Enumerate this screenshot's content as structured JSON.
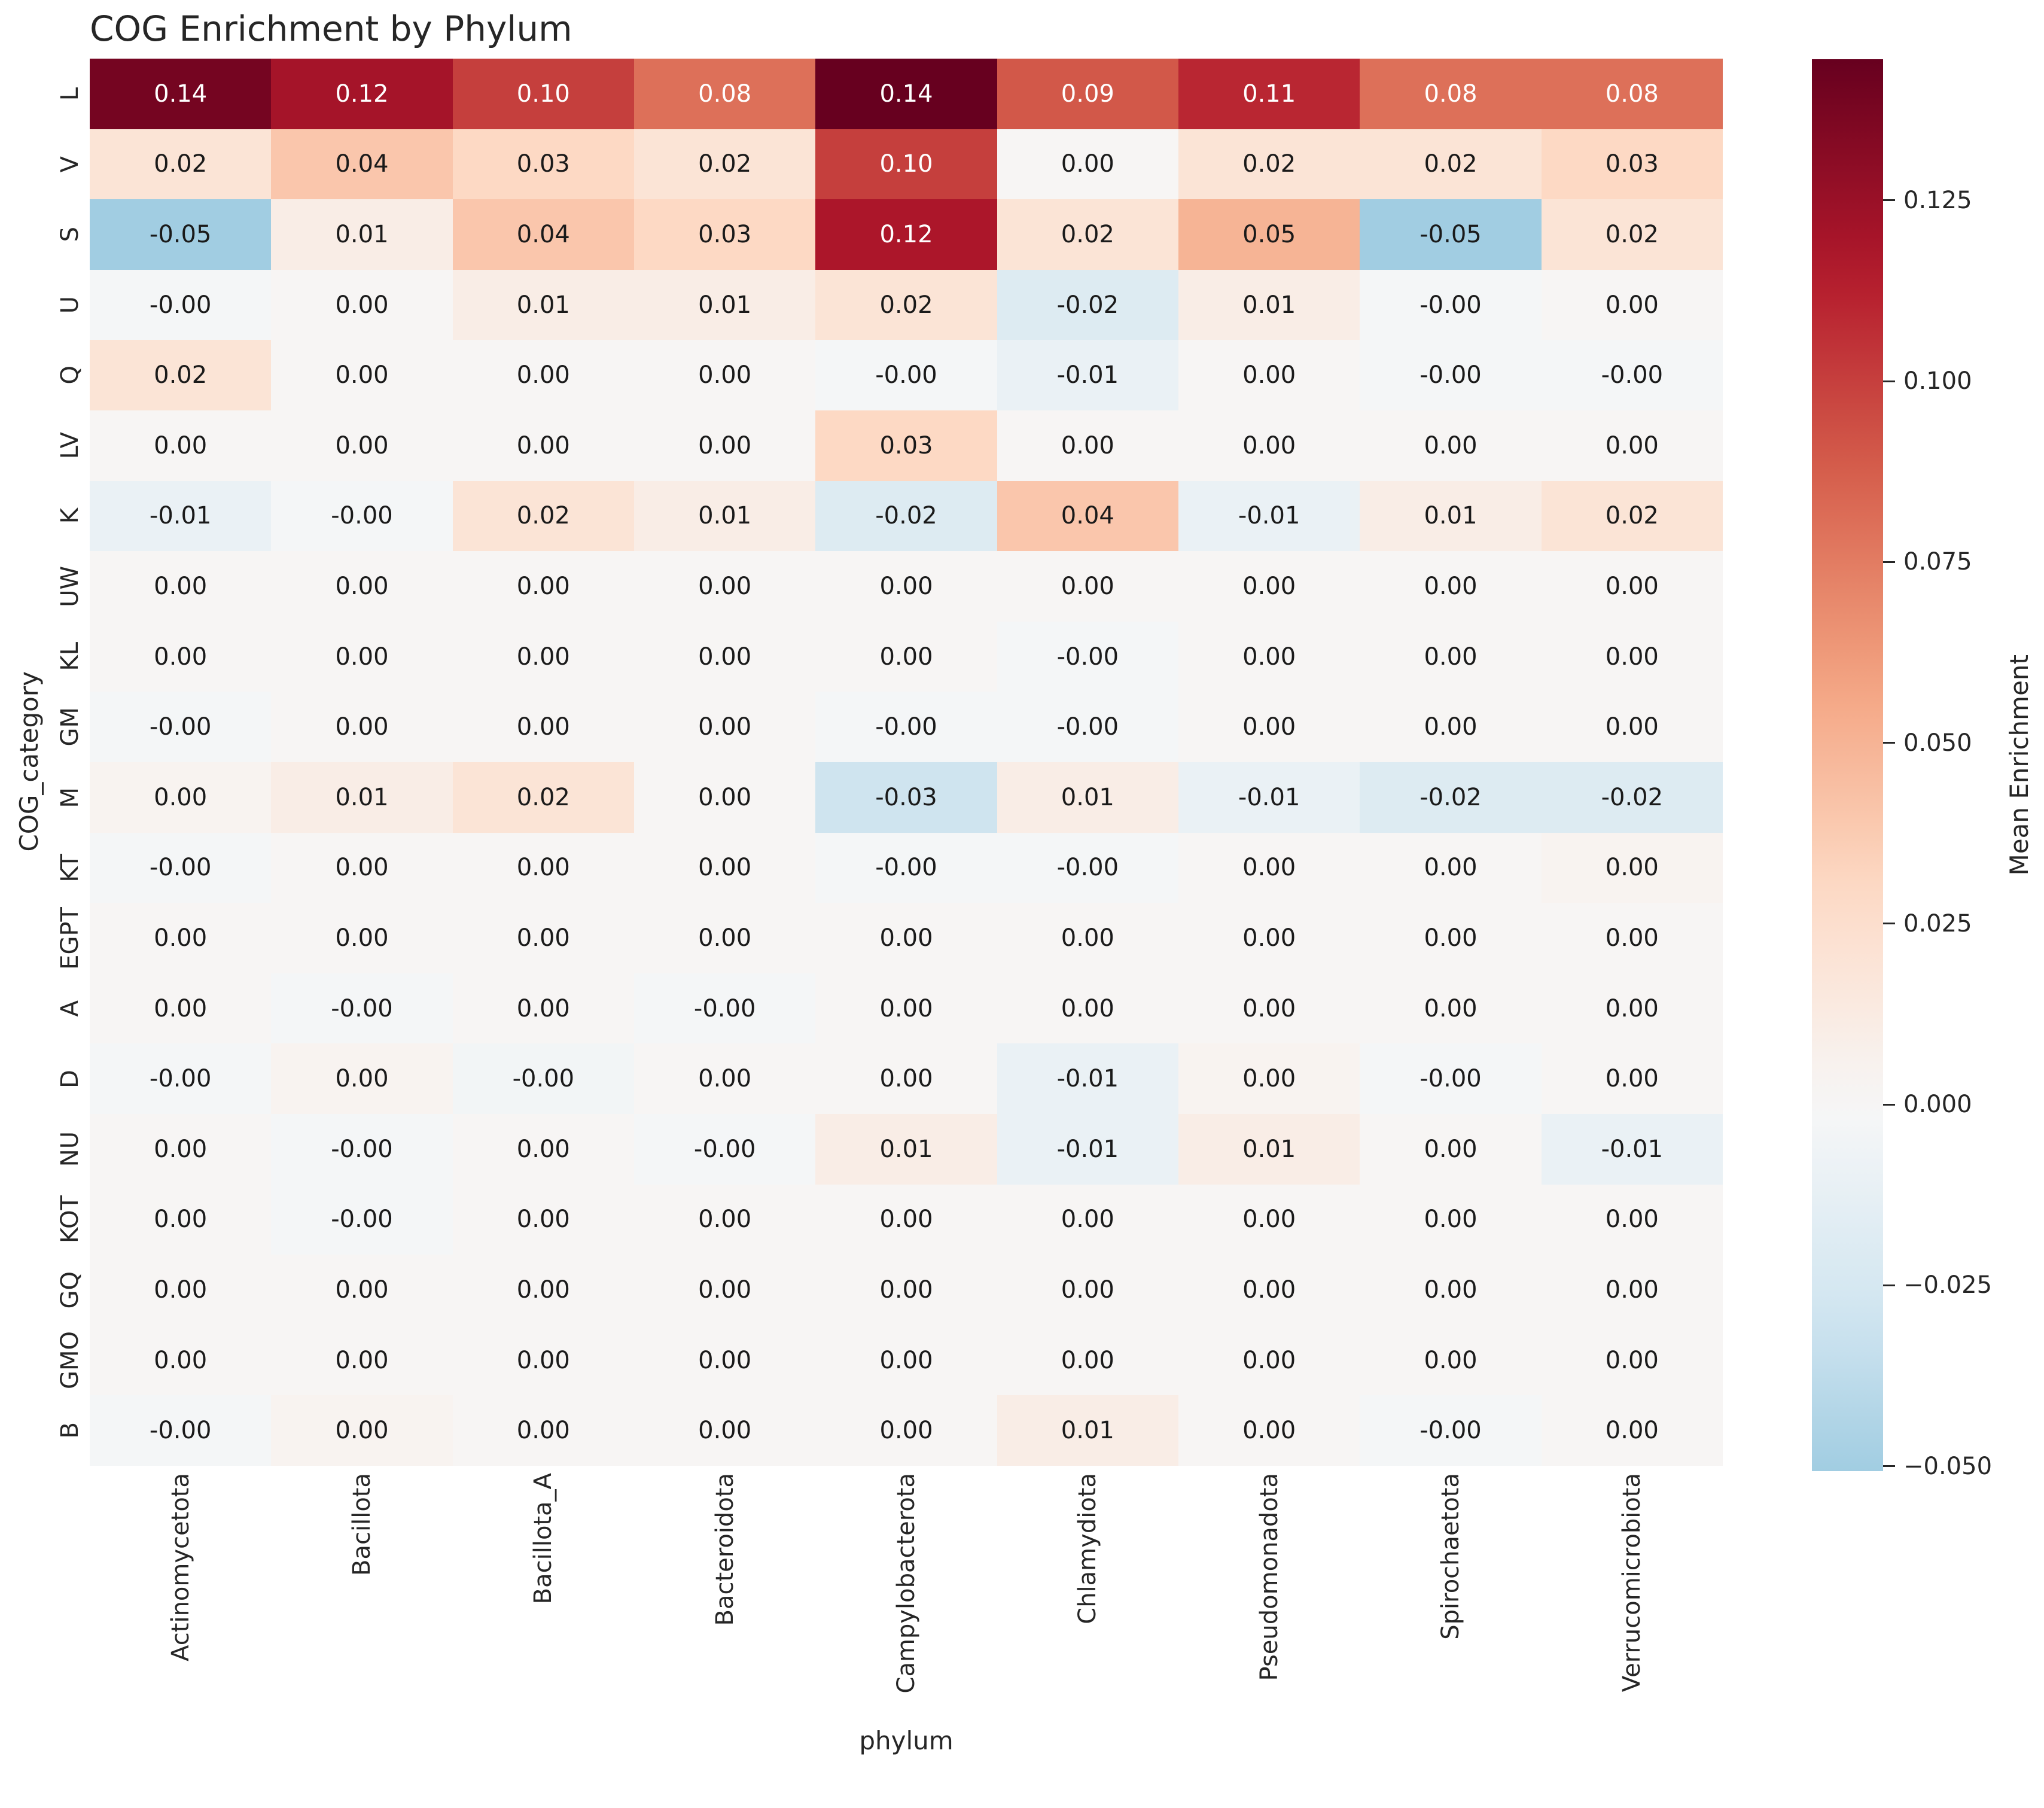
{
  "chart_data": {
    "type": "heatmap",
    "title": "COG Enrichment by Phylum",
    "xlabel": "phylum",
    "ylabel": "COG_category",
    "colorbar_label": "Mean Enrichment",
    "colormap": "RdBu_r",
    "center": 0,
    "vmax": 0.1445,
    "vmin": -0.0507,
    "categories_x": [
      "Actinomycetota",
      "Bacillota",
      "Bacillota_A",
      "Bacteroidota",
      "Campylobacterota",
      "Chlamydiota",
      "Pseudomonadota",
      "Spirochaetota",
      "Verrucomicrobiota"
    ],
    "categories_y": [
      "L",
      "V",
      "S",
      "U",
      "Q",
      "LV",
      "K",
      "UW",
      "KL",
      "GM",
      "M",
      "KT",
      "EGPT",
      "A",
      "D",
      "NU",
      "KOT",
      "GQ",
      "GMO",
      "B"
    ],
    "labels": [
      [
        "0.14",
        "0.12",
        "0.10",
        "0.08",
        "0.14",
        "0.09",
        "0.11",
        "0.08",
        "0.08"
      ],
      [
        "0.02",
        "0.04",
        "0.03",
        "0.02",
        "0.10",
        "0.00",
        "0.02",
        "0.02",
        "0.03"
      ],
      [
        "-0.05",
        "0.01",
        "0.04",
        "0.03",
        "0.12",
        "0.02",
        "0.05",
        "-0.05",
        "0.02"
      ],
      [
        "-0.00",
        "0.00",
        "0.01",
        "0.01",
        "0.02",
        "-0.02",
        "0.01",
        "-0.00",
        "0.00"
      ],
      [
        "0.02",
        "0.00",
        "0.00",
        "0.00",
        "-0.00",
        "-0.01",
        "0.00",
        "-0.00",
        "-0.00"
      ],
      [
        "0.00",
        "0.00",
        "0.00",
        "0.00",
        "0.03",
        "0.00",
        "0.00",
        "0.00",
        "0.00"
      ],
      [
        "-0.01",
        "-0.00",
        "0.02",
        "0.01",
        "-0.02",
        "0.04",
        "-0.01",
        "0.01",
        "0.02"
      ],
      [
        "0.00",
        "0.00",
        "0.00",
        "0.00",
        "0.00",
        "0.00",
        "0.00",
        "0.00",
        "0.00"
      ],
      [
        "0.00",
        "0.00",
        "0.00",
        "0.00",
        "0.00",
        "-0.00",
        "0.00",
        "0.00",
        "0.00"
      ],
      [
        "-0.00",
        "0.00",
        "0.00",
        "0.00",
        "-0.00",
        "-0.00",
        "0.00",
        "0.00",
        "0.00"
      ],
      [
        "0.00",
        "0.01",
        "0.02",
        "0.00",
        "-0.03",
        "0.01",
        "-0.01",
        "-0.02",
        "-0.02"
      ],
      [
        "-0.00",
        "0.00",
        "0.00",
        "0.00",
        "-0.00",
        "-0.00",
        "0.00",
        "0.00",
        "0.00"
      ],
      [
        "0.00",
        "0.00",
        "0.00",
        "0.00",
        "0.00",
        "0.00",
        "0.00",
        "0.00",
        "0.00"
      ],
      [
        "0.00",
        "-0.00",
        "0.00",
        "-0.00",
        "0.00",
        "0.00",
        "0.00",
        "0.00",
        "0.00"
      ],
      [
        "-0.00",
        "0.00",
        "-0.00",
        "0.00",
        "0.00",
        "-0.01",
        "0.00",
        "-0.00",
        "0.00"
      ],
      [
        "0.00",
        "-0.00",
        "0.00",
        "-0.00",
        "0.01",
        "-0.01",
        "0.01",
        "0.00",
        "-0.01"
      ],
      [
        "0.00",
        "-0.00",
        "0.00",
        "0.00",
        "0.00",
        "0.00",
        "0.00",
        "0.00",
        "0.00"
      ],
      [
        "0.00",
        "0.00",
        "0.00",
        "0.00",
        "0.00",
        "0.00",
        "0.00",
        "0.00",
        "0.00"
      ],
      [
        "0.00",
        "0.00",
        "0.00",
        "0.00",
        "0.00",
        "0.00",
        "0.00",
        "0.00",
        "0.00"
      ],
      [
        "-0.00",
        "0.00",
        "0.00",
        "0.00",
        "0.00",
        "0.01",
        "0.00",
        "-0.00",
        "0.00"
      ]
    ],
    "values": [
      [
        0.139,
        0.1205,
        0.1,
        0.08,
        0.1445,
        0.09,
        0.11,
        0.08,
        0.08
      ],
      [
        0.02,
        0.04,
        0.03,
        0.02,
        0.1,
        0.002,
        0.02,
        0.02,
        0.03
      ],
      [
        -0.0507,
        0.01,
        0.04,
        0.03,
        0.118,
        0.02,
        0.05,
        -0.0507,
        0.02
      ],
      [
        -0.002,
        0.002,
        0.01,
        0.01,
        0.02,
        -0.02,
        0.01,
        -0.002,
        0.002
      ],
      [
        0.02,
        0.002,
        0.002,
        0.002,
        -0.002,
        -0.01,
        0.002,
        -0.002,
        -0.002
      ],
      [
        0.002,
        0.002,
        0.002,
        0.002,
        0.03,
        0.002,
        0.002,
        0.002,
        0.002
      ],
      [
        -0.01,
        -0.002,
        0.02,
        0.01,
        -0.02,
        0.04,
        -0.01,
        0.01,
        0.02
      ],
      [
        0.002,
        0.002,
        0.002,
        0.002,
        0.002,
        0.002,
        0.002,
        0.002,
        0.002
      ],
      [
        0.002,
        0.002,
        0.002,
        0.002,
        0.002,
        -0.002,
        0.002,
        0.002,
        0.002
      ],
      [
        -0.002,
        0.002,
        0.002,
        0.002,
        -0.002,
        -0.002,
        0.002,
        0.002,
        0.002
      ],
      [
        0.004,
        0.01,
        0.02,
        0.002,
        -0.03,
        0.01,
        -0.01,
        -0.02,
        -0.02
      ],
      [
        -0.002,
        0.002,
        0.002,
        0.002,
        -0.002,
        -0.002,
        0.002,
        0.002,
        0.004
      ],
      [
        0.002,
        0.002,
        0.002,
        0.002,
        0.002,
        0.002,
        0.002,
        0.002,
        0.002
      ],
      [
        0.002,
        -0.002,
        0.002,
        -0.002,
        0.002,
        0.002,
        0.002,
        0.002,
        0.002
      ],
      [
        -0.002,
        0.004,
        -0.004,
        0.002,
        0.002,
        -0.01,
        0.004,
        -0.002,
        0.002
      ],
      [
        0.002,
        -0.002,
        0.002,
        -0.002,
        0.01,
        -0.01,
        0.01,
        0.002,
        -0.01
      ],
      [
        0.002,
        -0.002,
        0.002,
        0.002,
        0.002,
        0.002,
        0.002,
        0.002,
        0.002
      ],
      [
        0.002,
        0.002,
        0.002,
        0.002,
        0.002,
        0.002,
        0.002,
        0.002,
        0.002
      ],
      [
        0.002,
        0.002,
        0.002,
        0.002,
        0.002,
        0.002,
        0.002,
        0.002,
        0.002
      ],
      [
        -0.002,
        0.004,
        0.002,
        0.002,
        0.002,
        0.01,
        0.002,
        -0.002,
        0.002
      ]
    ],
    "colorbar_ticks": [
      {
        "label": "0.125",
        "value": 0.125
      },
      {
        "label": "0.100",
        "value": 0.1
      },
      {
        "label": "0.075",
        "value": 0.075
      },
      {
        "label": "0.050",
        "value": 0.05
      },
      {
        "label": "0.025",
        "value": 0.025
      },
      {
        "label": "0.000",
        "value": 0.0
      },
      {
        "label": "−0.025",
        "value": -0.025
      },
      {
        "label": "−0.050",
        "value": -0.05
      }
    ],
    "style": {
      "background": "#ffffff",
      "text_color": "#262626",
      "annot_color_dark": "#1a1a1a",
      "annot_color_light": "#ffffff",
      "darkest_red": "#67001f",
      "white_center": "#f7f7f7",
      "min_blue": "#a1cde2"
    }
  }
}
